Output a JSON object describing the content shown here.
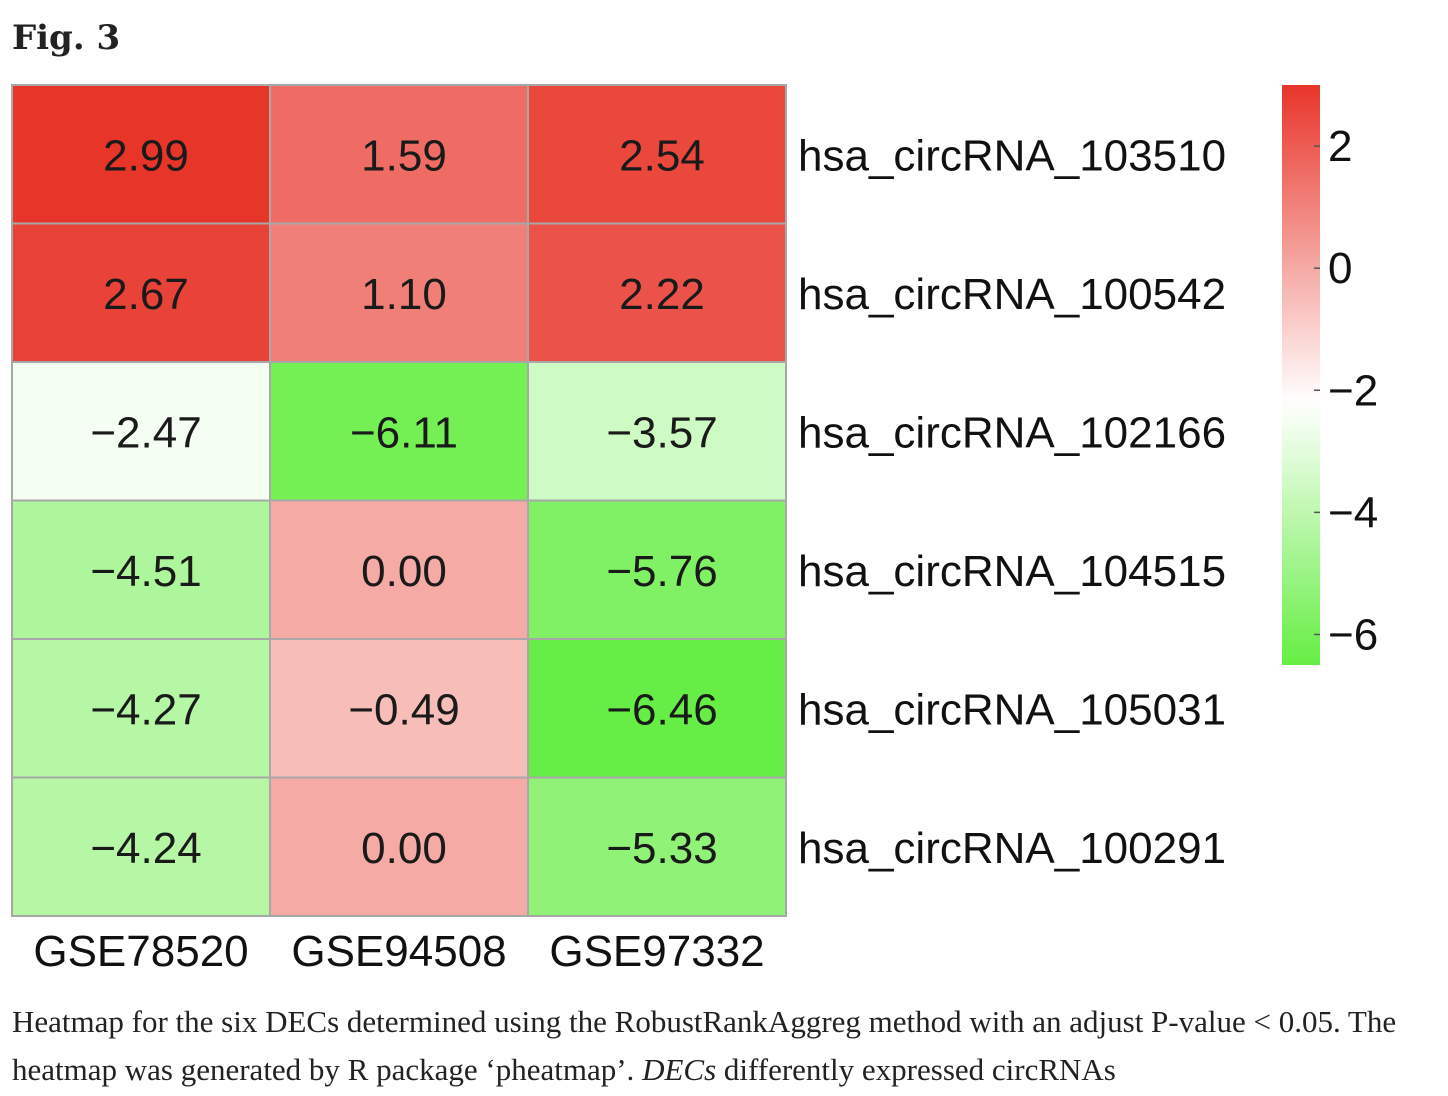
{
  "figure": {
    "label": "Fig. 3"
  },
  "chart_data": {
    "type": "heatmap",
    "columns": [
      "GSE78520",
      "GSE94508",
      "GSE97332"
    ],
    "rows": [
      "hsa_circRNA_103510",
      "hsa_circRNA_100542",
      "hsa_circRNA_102166",
      "hsa_circRNA_104515",
      "hsa_circRNA_105031",
      "hsa_circRNA_100291"
    ],
    "values": [
      [
        2.99,
        1.59,
        2.54
      ],
      [
        2.67,
        1.1,
        2.22
      ],
      [
        -2.47,
        -6.11,
        -3.57
      ],
      [
        -4.51,
        0.0,
        -5.76
      ],
      [
        -4.27,
        -0.49,
        -6.46
      ],
      [
        -4.24,
        0.0,
        -5.33
      ]
    ],
    "cell_labels": [
      [
        "2.99",
        "1.59",
        "2.54"
      ],
      [
        "2.67",
        "1.10",
        "2.22"
      ],
      [
        "−2.47",
        "−6.11",
        "−3.57"
      ],
      [
        "−4.51",
        "0.00",
        "−5.76"
      ],
      [
        "−4.27",
        "−0.49",
        "−6.46"
      ],
      [
        "−4.24",
        "0.00",
        "−5.33"
      ]
    ],
    "color_scale": {
      "min": -6.5,
      "max": 3.0,
      "low_color": "#66ee44",
      "mid_color": "#ffffff",
      "mid_value": -2.2,
      "high_color": "#e8352a",
      "ticks": [
        2,
        0,
        -2,
        -4,
        -6
      ],
      "tick_labels": [
        "2",
        "0",
        "−2",
        "−4",
        "−6"
      ]
    },
    "legend_position": "right"
  },
  "caption": {
    "text_before": "Heatmap for the six DECs determined using the RobustRankAggreg method with an adjust P-value < 0.05. The heatmap was generated by R package ‘pheatmap’. ",
    "italic_term": "DECs",
    "text_after": " differently expressed circRNAs"
  }
}
